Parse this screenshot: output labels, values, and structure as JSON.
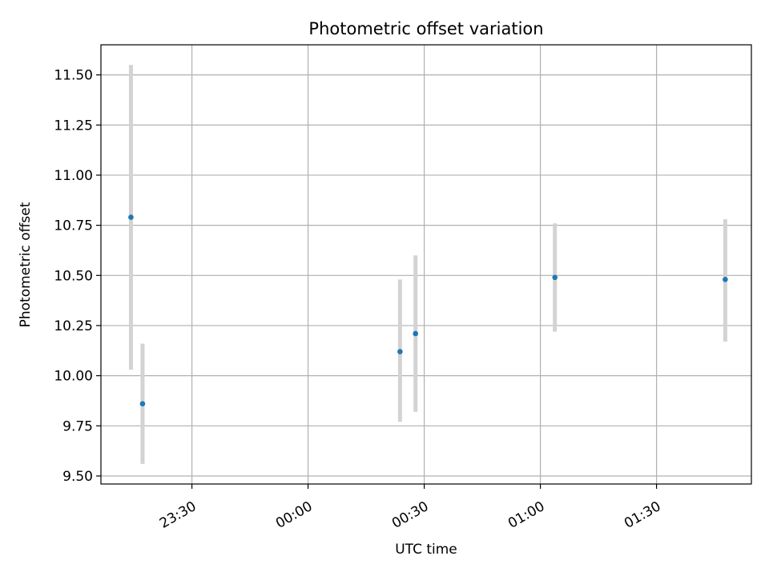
{
  "chart_data": {
    "type": "scatter",
    "title": "Photometric offset variation",
    "xlabel": "UTC time",
    "ylabel": "Photometric offset",
    "xlim": [
      "23:06:30",
      "01:54:30"
    ],
    "ylim": [
      9.46,
      11.65
    ],
    "x_ticks": [
      "23:30",
      "00:00",
      "00:30",
      "01:00",
      "01:30"
    ],
    "y_ticks": [
      "9.50",
      "9.75",
      "10.00",
      "10.25",
      "10.50",
      "10.75",
      "11.00",
      "11.25",
      "11.50"
    ],
    "grid": true,
    "points": [
      {
        "x": "23:14:15",
        "y": 10.79,
        "ylow": 10.03,
        "yhigh": 11.55
      },
      {
        "x": "23:17:15",
        "y": 9.86,
        "ylow": 9.56,
        "yhigh": 10.16
      },
      {
        "x": "00:23:45",
        "y": 10.12,
        "ylow": 9.77,
        "yhigh": 10.48
      },
      {
        "x": "00:27:45",
        "y": 10.21,
        "ylow": 9.82,
        "yhigh": 10.6
      },
      {
        "x": "01:03:45",
        "y": 10.49,
        "ylow": 10.22,
        "yhigh": 10.76
      },
      {
        "x": "01:47:45",
        "y": 10.48,
        "ylow": 10.17,
        "yhigh": 10.78
      }
    ],
    "colors": {
      "point": "#1f77b4",
      "errorbar": "#d3d3d3",
      "grid": "#b0b0b0"
    }
  }
}
